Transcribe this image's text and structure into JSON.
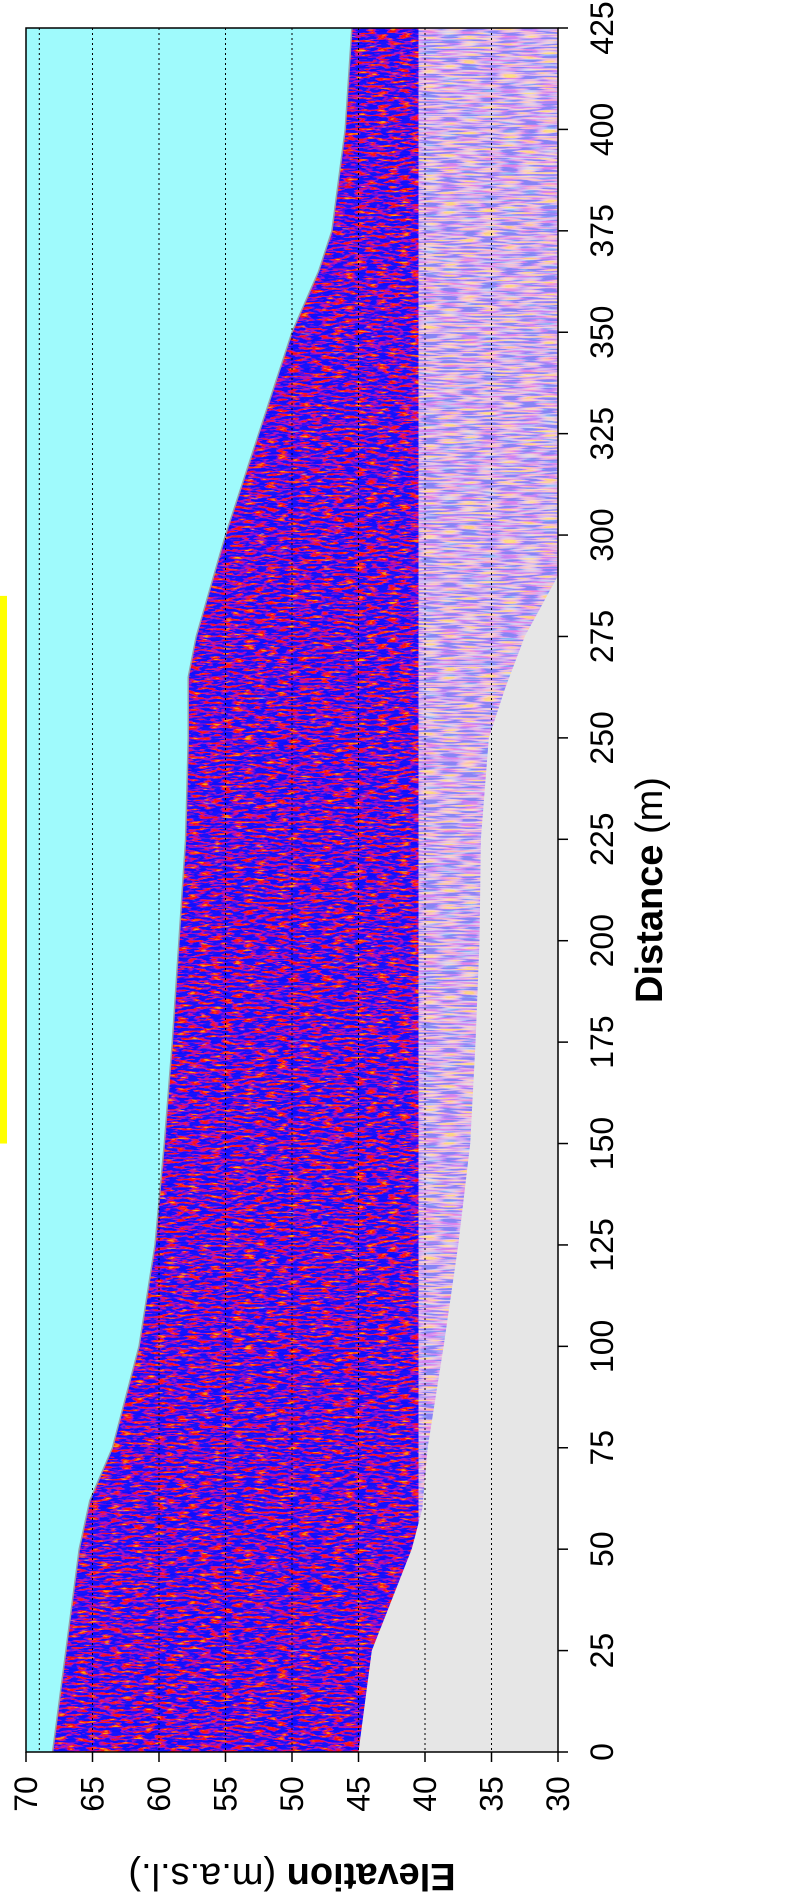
{
  "chart_data": {
    "type": "heatmap",
    "title": "",
    "xlabel_bold": "Distance",
    "xlabel_rest": " (m)",
    "ylabel_bold": "Elevation",
    "ylabel_rest": " (m.a.s.l.)",
    "xlim": [
      0,
      425
    ],
    "ylim": [
      30,
      70
    ],
    "x_ticks": [
      0,
      25,
      50,
      75,
      100,
      125,
      150,
      175,
      200,
      225,
      250,
      275,
      300,
      325,
      350,
      375,
      400,
      425
    ],
    "y_ticks": [
      70,
      65,
      60,
      55,
      50,
      45,
      40,
      35,
      30
    ],
    "x_tick_labels": [
      "0",
      "25",
      "50",
      "75",
      "100",
      "125",
      "150",
      "175",
      "200",
      "225",
      "250",
      "275",
      "300",
      "325",
      "350",
      "375",
      "400",
      "425"
    ],
    "y_tick_labels": [
      "70",
      "65",
      "60",
      "55",
      "50",
      "45",
      "40",
      "35",
      "30"
    ],
    "grid_elevations": [
      65,
      60,
      55,
      50,
      45,
      40,
      35
    ],
    "water_surface_elevation": 69,
    "water_bottom_profile": [
      {
        "x": 0,
        "y": 68.0
      },
      {
        "x": 25,
        "y": 67.0
      },
      {
        "x": 50,
        "y": 66.0
      },
      {
        "x": 62,
        "y": 65.2
      },
      {
        "x": 75,
        "y": 63.5
      },
      {
        "x": 100,
        "y": 61.5
      },
      {
        "x": 125,
        "y": 60.3
      },
      {
        "x": 150,
        "y": 59.6
      },
      {
        "x": 175,
        "y": 59.0
      },
      {
        "x": 200,
        "y": 58.5
      },
      {
        "x": 225,
        "y": 58.0
      },
      {
        "x": 250,
        "y": 57.8
      },
      {
        "x": 265,
        "y": 57.8
      },
      {
        "x": 275,
        "y": 57.2
      },
      {
        "x": 300,
        "y": 55.0
      },
      {
        "x": 325,
        "y": 52.5
      },
      {
        "x": 350,
        "y": 50.0
      },
      {
        "x": 365,
        "y": 48.0
      },
      {
        "x": 375,
        "y": 47.0
      },
      {
        "x": 400,
        "y": 46.0
      },
      {
        "x": 425,
        "y": 45.5
      }
    ],
    "signal_floor_profile": [
      {
        "x": 0,
        "y": 45.0
      },
      {
        "x": 25,
        "y": 44.0
      },
      {
        "x": 50,
        "y": 41.0
      },
      {
        "x": 60,
        "y": 40.2
      },
      {
        "x": 75,
        "y": 39.8
      },
      {
        "x": 100,
        "y": 38.6
      },
      {
        "x": 125,
        "y": 37.5
      },
      {
        "x": 150,
        "y": 36.6
      },
      {
        "x": 175,
        "y": 36.2
      },
      {
        "x": 200,
        "y": 35.9
      },
      {
        "x": 225,
        "y": 35.8
      },
      {
        "x": 250,
        "y": 35.2
      },
      {
        "x": 262,
        "y": 34.0
      },
      {
        "x": 275,
        "y": 32.5
      },
      {
        "x": 290,
        "y": 30.0
      }
    ],
    "colors": {
      "water": "#9ffafc",
      "no_data": "#e6e6e6",
      "background": "#faf2ee",
      "positive": "#e8762d",
      "negative": "#4a3fb0",
      "marker": "#ffff00",
      "axis": "#000000"
    },
    "highlight_marker_x_range": [
      150,
      285
    ]
  }
}
